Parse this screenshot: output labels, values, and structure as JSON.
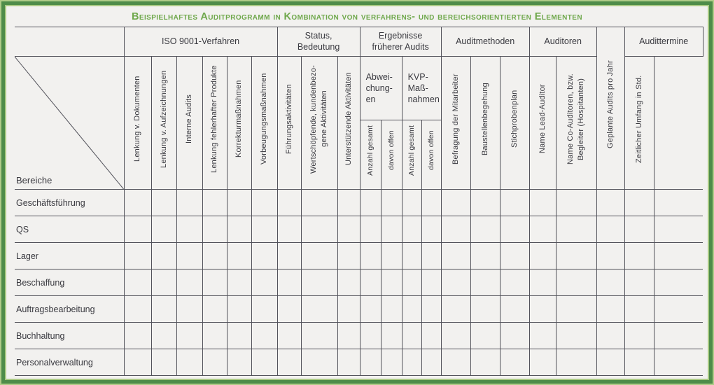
{
  "title": "Beispielhaftes Auditprogramm in Kombination von verfahrens- und bereichsorientierten Elementen",
  "colors": {
    "accent_green": "#6fa84c",
    "frame_outer_green": "#aecb87",
    "frame_band_green": "#4e8c49",
    "grid_line": "#52525a",
    "background": "#f2f1ef",
    "text": "#3a3a40"
  },
  "table": {
    "corner_label": "Bereiche",
    "groups": {
      "iso": "ISO 9001-Verfahren",
      "status": "Status,\nBedeutung",
      "ergebnisse": "Ergebnisse\nfrüherer Audits",
      "methoden": "Auditmethoden",
      "auditoren": "Auditoren",
      "termine": "Audittermine"
    },
    "iso_columns": [
      "Lenkung v. Dokumenten",
      "Lenkung v. Aufzeichnungen",
      "Interne Audits",
      "Lenkung fehlerhafter Produkte",
      "Korrekturmaßnahmen",
      "Vorbeugungsmaßnahmen"
    ],
    "status_columns": [
      "Führungsaktivitäten",
      "Wertschöpfende, kundenbezo-\ngene Aktivitäten",
      "Unterstützende Aktivitäten"
    ],
    "subgroups": [
      {
        "label": "Abwei-\nchung-\nen",
        "cols": [
          "Anzahl gesamt",
          "davon offen"
        ]
      },
      {
        "label": "KVP-\nMaß-\nnahmen",
        "cols": [
          "Anzahl gesamt",
          "davon offen"
        ]
      }
    ],
    "methoden_columns": [
      "Befragung der Mitarbeiter",
      "Baustellenbegehung",
      "Stichprobenplan"
    ],
    "auditoren_columns": [
      "Name Lead-Auditor",
      "Name Co-Auditoren, bzw.\nBegleiter (Hospitanten)"
    ],
    "geplante_column": "Geplante Audits pro Jahr",
    "termine_columns": [
      "Zeitlicher Umfang in Std.",
      ""
    ],
    "rows": [
      "Geschäftsführung",
      "QS",
      "Lager",
      "Beschaffung",
      "Auftragsbearbeitung",
      "Buchhaltung",
      "Personalverwaltung"
    ]
  }
}
